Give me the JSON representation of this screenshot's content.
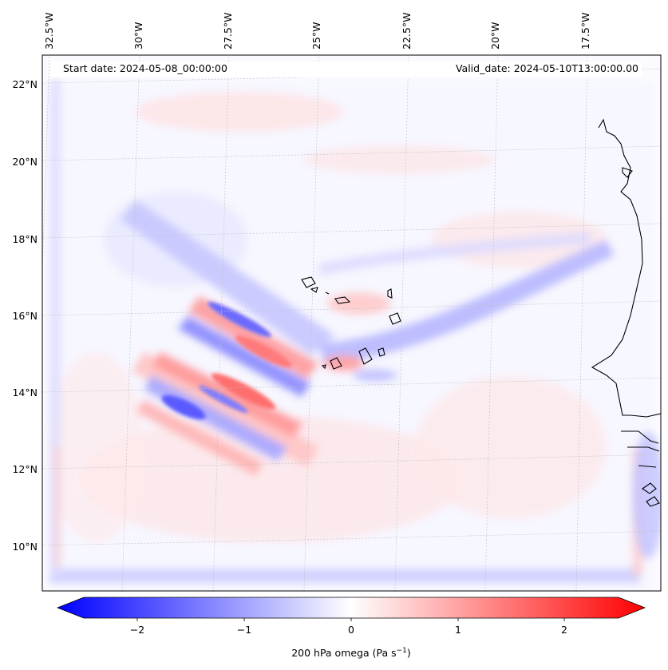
{
  "map": {
    "start_label": "Start date: 2024-05-08_00:00:00",
    "valid_label": "Valid_date: 2024-05-10T13:00:00.00",
    "lon_ticks": [
      "32.5°W",
      "30°W",
      "27.5°W",
      "25°W",
      "22.5°W",
      "20°W",
      "17.5°W"
    ],
    "lat_ticks": [
      "22°N",
      "20°N",
      "18°N",
      "16°N",
      "14°N",
      "12°N",
      "10°N"
    ],
    "field": "200 hPa omega",
    "colors": {
      "negative": "#0000ff",
      "zero": "#ffffff",
      "positive": "#ff0000",
      "coast": "#000000"
    }
  },
  "colorbar": {
    "ticks": [
      "−2",
      "−1",
      "0",
      "1",
      "2"
    ],
    "label_main": "200 hPa omega (Pa s",
    "label_sup": "−1",
    "label_end": ")",
    "range": [
      -2.7,
      2.7
    ]
  }
}
